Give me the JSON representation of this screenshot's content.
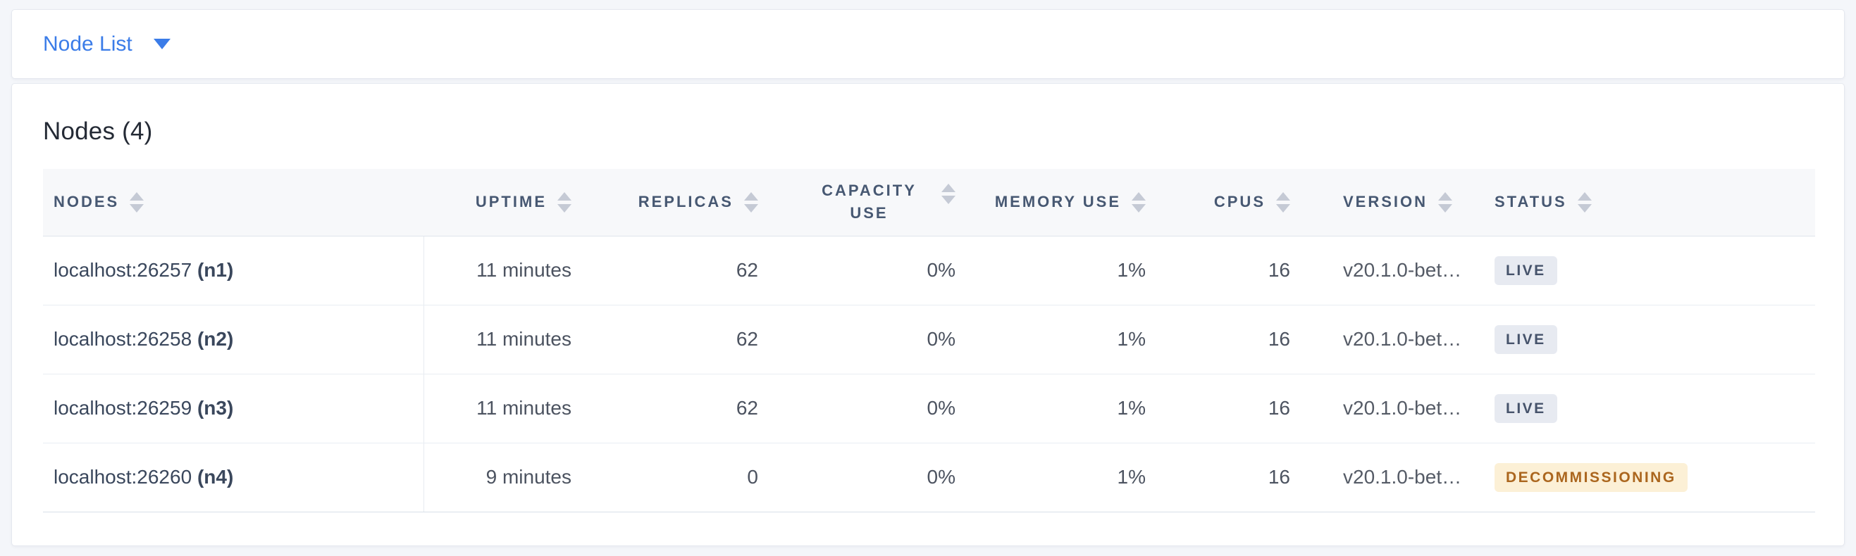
{
  "toolbar": {
    "dropdown_label": "Node List"
  },
  "main": {
    "title": "Nodes (4)",
    "table": {
      "columns": [
        {
          "label": "NODES",
          "align": "left"
        },
        {
          "label": "UPTIME",
          "align": "right"
        },
        {
          "label": "REPLICAS",
          "align": "right"
        },
        {
          "label": "CAPACITY USE",
          "align": "right"
        },
        {
          "label": "MEMORY USE",
          "align": "right"
        },
        {
          "label": "CPUS",
          "align": "right"
        },
        {
          "label": "VERSION",
          "align": "left"
        },
        {
          "label": "STATUS",
          "align": "left"
        }
      ],
      "rows": [
        {
          "address": "localhost:26257",
          "node_id": "(n1)",
          "uptime": "11 minutes",
          "replicas": "62",
          "capacity_use": "0%",
          "memory_use": "1%",
          "cpus": "16",
          "version": "v20.1.0-bet…",
          "status": "LIVE",
          "status_variant": "live"
        },
        {
          "address": "localhost:26258",
          "node_id": "(n2)",
          "uptime": "11 minutes",
          "replicas": "62",
          "capacity_use": "0%",
          "memory_use": "1%",
          "cpus": "16",
          "version": "v20.1.0-bet…",
          "status": "LIVE",
          "status_variant": "live"
        },
        {
          "address": "localhost:26259",
          "node_id": "(n3)",
          "uptime": "11 minutes",
          "replicas": "62",
          "capacity_use": "0%",
          "memory_use": "1%",
          "cpus": "16",
          "version": "v20.1.0-bet…",
          "status": "LIVE",
          "status_variant": "live"
        },
        {
          "address": "localhost:26260",
          "node_id": "(n4)",
          "uptime": "9 minutes",
          "replicas": "0",
          "capacity_use": "0%",
          "memory_use": "1%",
          "cpus": "16",
          "version": "v20.1.0-bet…",
          "status": "DECOMMISSIONING",
          "status_variant": "decommissioning"
        }
      ]
    }
  },
  "colors": {
    "accent_blue": "#3b7ce8",
    "page_background": "#f4f6fa",
    "header_text": "#475872",
    "live_badge_bg": "#e7eaf1",
    "live_badge_text": "#46536b",
    "decommissioning_badge_bg": "#fcf0d6",
    "decommissioning_badge_text": "#ab661e"
  }
}
